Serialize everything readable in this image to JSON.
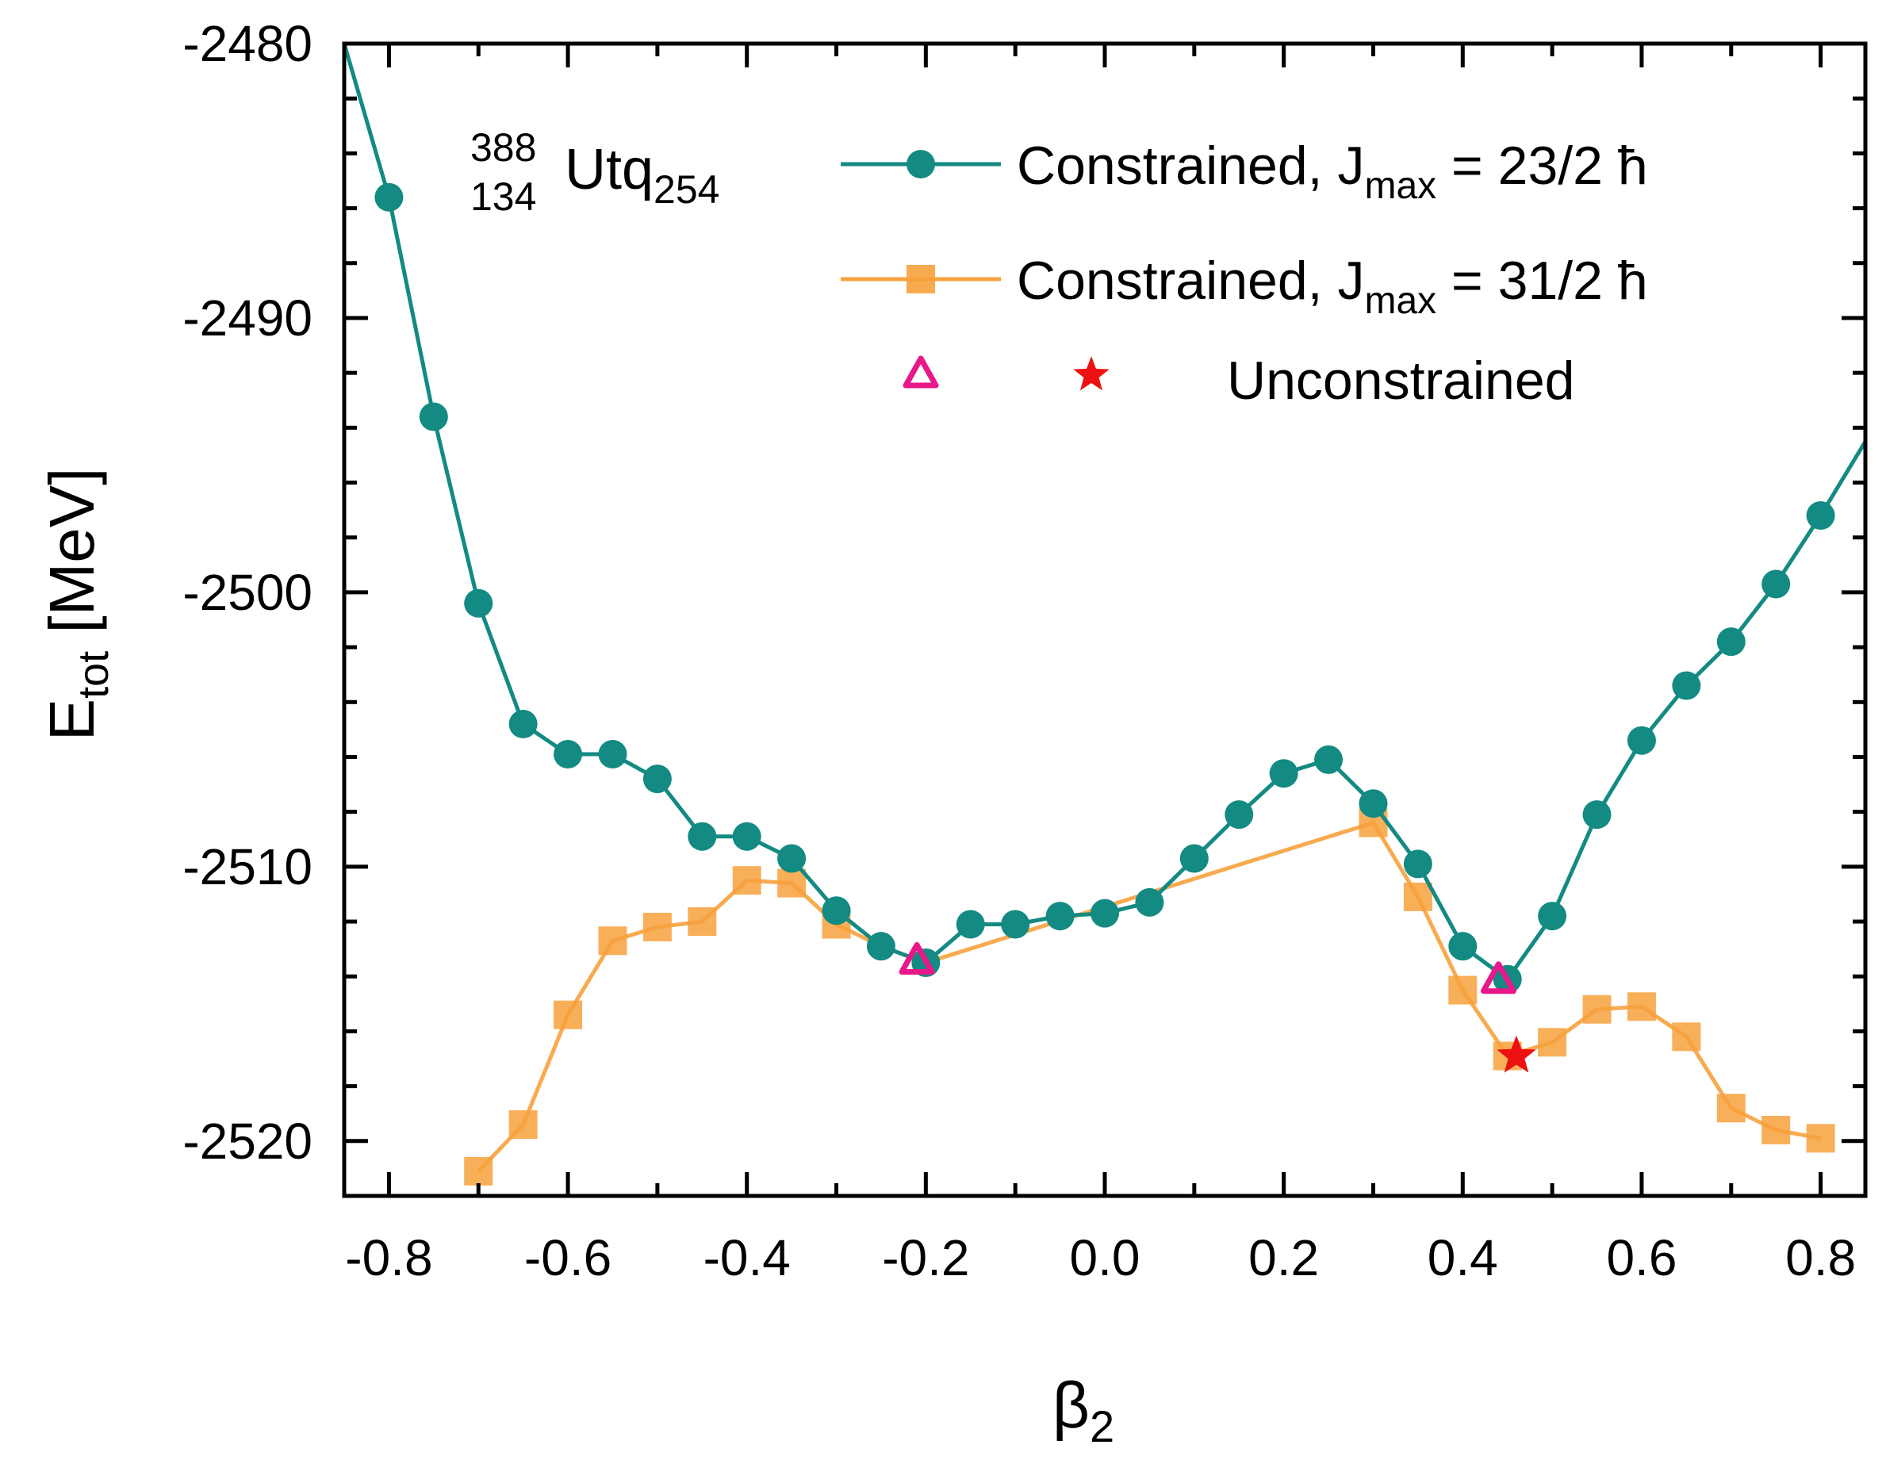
{
  "chart_data": {
    "type": "line",
    "title": "",
    "xlabel": {
      "main": "β",
      "sub": "2"
    },
    "ylabel": {
      "main": "E",
      "sub": "tot",
      "suffix": " [MeV]"
    },
    "xlim": [
      -0.85,
      0.85
    ],
    "ylim": [
      -2522,
      -2480
    ],
    "x_ticks": [
      -0.8,
      -0.6,
      -0.4,
      -0.2,
      0.0,
      0.2,
      0.4,
      0.6,
      0.8
    ],
    "x_tick_labels": [
      "-0.8",
      "-0.6",
      "-0.4",
      "-0.2",
      "0.0",
      "0.2",
      "0.4",
      "0.6",
      "0.8"
    ],
    "y_ticks": [
      -2520,
      -2510,
      -2500,
      -2490,
      -2480
    ],
    "y_tick_labels": [
      "-2520",
      "-2510",
      "-2500",
      "-2490",
      "-2480"
    ],
    "nucleus": {
      "mass": "388",
      "charge": "134",
      "symbol": "Utq",
      "neutrons": "254"
    },
    "series": [
      {
        "name": "Constrained, J_max = 23/2 ħ",
        "legend": {
          "prefix": "Constrained, J",
          "sub": "max",
          "suffix": " = 23/2 ħ"
        },
        "color": "#138a82",
        "marker": "circle",
        "x": [
          -0.8,
          -0.75,
          -0.7,
          -0.65,
          -0.6,
          -0.55,
          -0.5,
          -0.45,
          -0.4,
          -0.35,
          -0.3,
          -0.25,
          -0.2,
          -0.15,
          -0.1,
          -0.05,
          0.0,
          0.05,
          0.1,
          0.15,
          0.2,
          0.25,
          0.3,
          0.35,
          0.4,
          0.45,
          0.5,
          0.55,
          0.6,
          0.65,
          0.7,
          0.75,
          0.8
        ],
        "y": [
          -2485.6,
          -2493.6,
          -2500.4,
          -2504.8,
          -2505.9,
          -2505.9,
          -2506.8,
          -2508.9,
          -2508.9,
          -2509.7,
          -2511.6,
          -2512.9,
          -2513.5,
          -2512.1,
          -2512.1,
          -2511.8,
          -2511.7,
          -2511.3,
          -2509.7,
          -2508.1,
          -2506.6,
          -2506.1,
          -2507.7,
          -2509.9,
          -2512.9,
          -2514.1,
          -2511.8,
          -2508.1,
          -2505.4,
          -2503.4,
          -2501.8,
          -2499.7,
          -2497.2
        ],
        "line_x": [
          -0.85,
          -0.8,
          -0.75,
          -0.7,
          -0.65,
          -0.6,
          -0.55,
          -0.5,
          -0.45,
          -0.4,
          -0.35,
          -0.3,
          -0.25,
          -0.2,
          -0.15,
          -0.1,
          -0.05,
          0.0,
          0.05,
          0.1,
          0.15,
          0.2,
          0.25,
          0.3,
          0.35,
          0.4,
          0.45,
          0.5,
          0.55,
          0.6,
          0.65,
          0.7,
          0.75,
          0.8,
          0.85
        ],
        "line_y": [
          -2480.0,
          -2485.6,
          -2493.6,
          -2500.4,
          -2504.8,
          -2505.9,
          -2505.9,
          -2506.8,
          -2508.9,
          -2508.9,
          -2509.7,
          -2511.6,
          -2512.9,
          -2513.5,
          -2512.1,
          -2512.1,
          -2511.8,
          -2511.7,
          -2511.3,
          -2509.7,
          -2508.1,
          -2506.6,
          -2506.1,
          -2507.7,
          -2509.9,
          -2512.9,
          -2514.1,
          -2511.8,
          -2508.1,
          -2505.4,
          -2503.4,
          -2501.8,
          -2499.7,
          -2497.2,
          -2494.5
        ]
      },
      {
        "name": "Constrained, J_max = 31/2 ħ",
        "legend": {
          "prefix": "Constrained, J",
          "sub": "max",
          "suffix": " = 31/2 ħ"
        },
        "color": "#f7a13c",
        "marker": "square",
        "x": [
          -0.7,
          -0.65,
          -0.6,
          -0.55,
          -0.5,
          -0.45,
          -0.4,
          -0.35,
          -0.3,
          0.3,
          0.35,
          0.4,
          0.45,
          0.5,
          0.55,
          0.6,
          0.65,
          0.7,
          0.75,
          0.8
        ],
        "y": [
          -2521.1,
          -2519.4,
          -2515.4,
          -2512.7,
          -2512.2,
          -2512.0,
          -2510.5,
          -2510.6,
          -2512.1,
          -2508.4,
          -2511.1,
          -2514.5,
          -2516.9,
          -2516.4,
          -2515.2,
          -2515.1,
          -2516.2,
          -2518.8,
          -2519.6,
          -2519.9
        ],
        "line_x": [
          -0.7,
          -0.65,
          -0.6,
          -0.55,
          -0.5,
          -0.45,
          -0.4,
          -0.35,
          -0.3,
          -0.25,
          -0.2,
          0.3,
          0.35,
          0.4,
          0.45,
          0.5,
          0.55,
          0.6,
          0.65,
          0.7,
          0.75,
          0.8
        ],
        "line_y": [
          -2521.1,
          -2519.4,
          -2515.4,
          -2512.7,
          -2512.2,
          -2512.0,
          -2510.5,
          -2510.6,
          -2512.1,
          -2512.9,
          -2513.5,
          -2508.4,
          -2511.1,
          -2514.5,
          -2516.9,
          -2516.4,
          -2515.2,
          -2515.1,
          -2516.2,
          -2518.8,
          -2519.6,
          -2519.9
        ]
      }
    ],
    "unconstrained": {
      "label": "Unconstrained",
      "triangles": {
        "color": "#e8188a",
        "x": [
          -0.21,
          0.44
        ],
        "y": [
          -2513.4,
          -2514.1
        ]
      },
      "star": {
        "color": "#ee1111",
        "x": [
          0.46
        ],
        "y": [
          -2516.9
        ]
      }
    },
    "legend_position": "top-right"
  }
}
